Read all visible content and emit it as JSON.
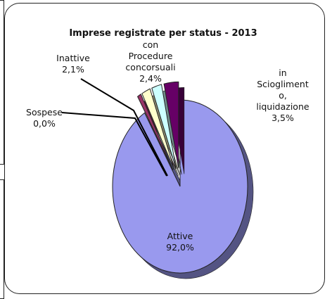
{
  "chart_data": {
    "type": "pie",
    "title": "Imprese registrate per status - 2013",
    "series": [
      {
        "slices": [
          {
            "name": "Attive",
            "value": 92.0,
            "value_label": "92,0%",
            "color": "#9999ee",
            "exploded": false
          },
          {
            "name": "Sospese",
            "value": 0.0,
            "value_label": "0,0%",
            "color": "#993366",
            "exploded": true
          },
          {
            "name": "Inattive",
            "value": 2.1,
            "value_label": "2,1%",
            "color": "#ffffcc",
            "exploded": true
          },
          {
            "name": "con Procedure concorsuali",
            "value": 2.4,
            "value_label": "2,4%",
            "color": "#ccffff",
            "exploded": true
          },
          {
            "name": "in Scioglimento, liquidazione",
            "value": 3.5,
            "value_label": "3,5%",
            "color": "#660066",
            "exploded": true
          }
        ]
      }
    ],
    "legend": "none",
    "label_lines": {
      "attive": [
        "Attive",
        "92,0%"
      ],
      "sospese": [
        "Sospese",
        "0,0%"
      ],
      "inattive": [
        "Inattive",
        "2,1%"
      ],
      "procedure": [
        "con",
        "Procedure",
        "concorsuali",
        "2,4%"
      ],
      "scioglimento": [
        "in",
        "Sciogliment",
        "o,",
        "liquidazione",
        "3,5%"
      ]
    }
  }
}
